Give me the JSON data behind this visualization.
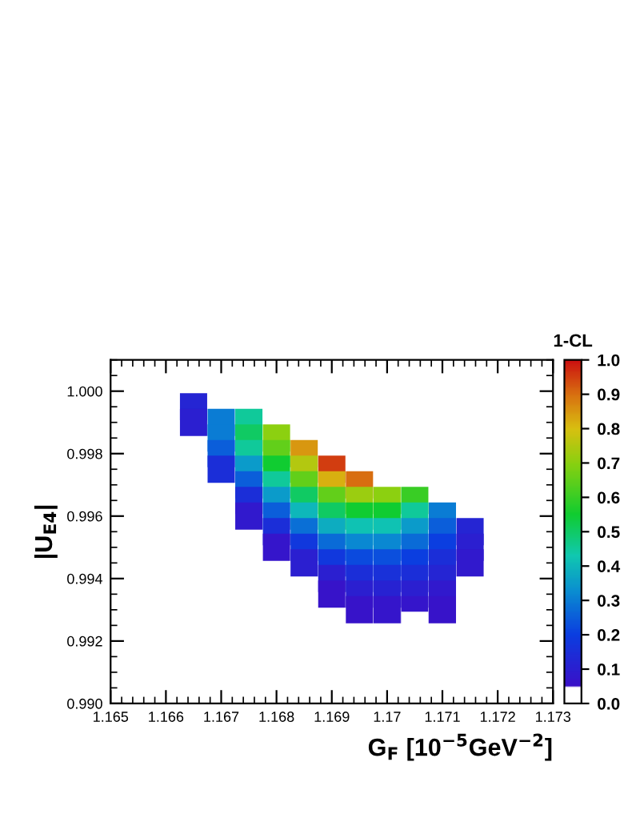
{
  "chart_data": {
    "type": "scatter",
    "xlabel": "G$_{F}$ [10$^{−5}$GeV$^{−2}$]",
    "ylabel": "|U$_{E4}$|",
    "clabel": "1-CL",
    "x": [
      1.1665,
      1.1665,
      1.167,
      1.1675,
      1.167,
      1.1675,
      1.168,
      1.167,
      1.1675,
      1.168,
      1.1685,
      1.167,
      1.1675,
      1.168,
      1.1685,
      1.169,
      1.1675,
      1.168,
      1.1685,
      1.169,
      1.1695,
      1.1675,
      1.168,
      1.1685,
      1.169,
      1.1695,
      1.17,
      1.1705,
      1.1675,
      1.168,
      1.1685,
      1.169,
      1.1695,
      1.17,
      1.1705,
      1.171,
      1.168,
      1.1685,
      1.169,
      1.1695,
      1.17,
      1.1705,
      1.171,
      1.1715,
      1.168,
      1.1685,
      1.169,
      1.1695,
      1.17,
      1.1705,
      1.171,
      1.1715,
      1.1685,
      1.169,
      1.1695,
      1.17,
      1.1705,
      1.171,
      1.1715,
      1.169,
      1.1695,
      1.17,
      1.1705,
      1.171,
      1.169,
      1.1695,
      1.17,
      1.1705,
      1.171,
      1.1695,
      1.17,
      1.1705,
      1.171,
      1.1705
    ],
    "values": [
      0.9995,
      0.999,
      0.999,
      0.999,
      0.9985,
      0.9985,
      0.9985,
      0.998,
      0.998,
      0.998,
      0.998,
      0.9975,
      0.9975,
      0.9975,
      0.9975,
      0.9975,
      0.997,
      0.997,
      0.997,
      0.997,
      0.997,
      0.9965,
      0.9965,
      0.9965,
      0.9965,
      0.9965,
      0.9965,
      0.9965,
      0.996,
      0.996,
      0.996,
      0.996,
      0.996,
      0.996,
      0.996,
      0.996,
      0.9955,
      0.9955,
      0.9955,
      0.9955,
      0.9955,
      0.9955,
      0.9955,
      0.9955,
      0.995,
      0.995,
      0.995,
      0.995,
      0.995,
      0.995,
      0.995,
      0.995,
      0.9945,
      0.9945,
      0.9945,
      0.9945,
      0.9945,
      0.9945,
      0.9945,
      0.994,
      0.994,
      0.994,
      0.994,
      0.994,
      0.9935,
      0.9935,
      0.9935,
      0.9935,
      0.9935,
      0.993,
      0.993,
      0.993,
      0.993,
      0.9925
    ],
    "cvalues": [
      0.12,
      0.1,
      0.3,
      0.45,
      0.3,
      0.5,
      0.7,
      0.25,
      0.45,
      0.65,
      0.85,
      0.15,
      0.35,
      0.55,
      0.75,
      0.95,
      0.25,
      0.45,
      0.65,
      0.82,
      0.9,
      0.15,
      0.35,
      0.5,
      0.65,
      0.72,
      0.7,
      0.6,
      0.08,
      0.25,
      0.4,
      0.5,
      0.55,
      0.55,
      0.45,
      0.3,
      0.15,
      0.28,
      0.38,
      0.42,
      0.42,
      0.35,
      0.25,
      0.12,
      0.07,
      0.18,
      0.27,
      0.32,
      0.32,
      0.27,
      0.2,
      0.1,
      0.1,
      0.18,
      0.22,
      0.23,
      0.2,
      0.15,
      0.08,
      0.1,
      0.15,
      0.16,
      0.15,
      0.12,
      0.06,
      0.1,
      0.11,
      0.1,
      0.08,
      0.06,
      0.07,
      0.07,
      0.06,
      0.05
    ],
    "marker": "square",
    "grid": false,
    "xlim": [
      1.165,
      1.173
    ],
    "xticks": [
      1.165,
      1.166,
      1.167,
      1.168,
      1.169,
      1.17,
      1.171,
      1.172,
      1.173
    ],
    "ylim": [
      0.99,
      1.001
    ],
    "yticks": [
      {
        "value": 0.99,
        "label": "0.990"
      },
      {
        "value": 0.992,
        "label": "0.992"
      },
      {
        "value": 0.994,
        "label": "0.994"
      },
      {
        "value": 0.996,
        "label": "0.996"
      },
      {
        "value": 0.998,
        "label": "0.998"
      },
      {
        "value": 1.0,
        "label": "1.000"
      }
    ],
    "clim": [
      0,
      1
    ],
    "cticks": [
      {
        "value": 0,
        "label": "0.0"
      },
      {
        "value": 0.1,
        "label": "0.1"
      },
      {
        "value": 0.2,
        "label": "0.2"
      },
      {
        "value": 0.3,
        "label": "0.3"
      },
      {
        "value": 0.4,
        "label": "0.4"
      },
      {
        "value": 0.5,
        "label": "0.5"
      },
      {
        "value": 0.6,
        "label": "0.6"
      },
      {
        "value": 0.7,
        "label": "0.7"
      },
      {
        "value": 0.8,
        "label": "0.8"
      },
      {
        "value": 0.9,
        "label": "0.9"
      },
      {
        "value": 1.0,
        "label": "1.0"
      }
    ]
  }
}
